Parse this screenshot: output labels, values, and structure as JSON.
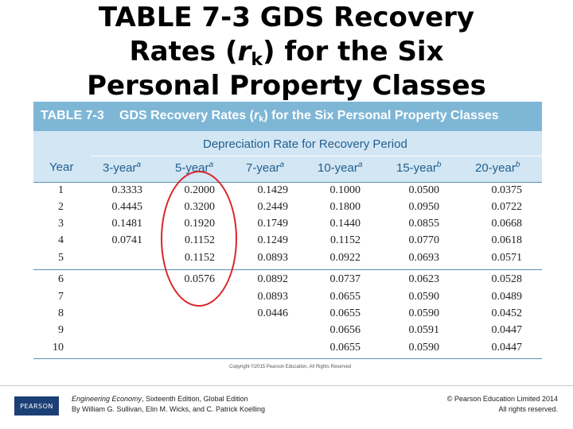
{
  "slide": {
    "title_line1": "TABLE 7-3 GDS   Recovery",
    "title_line2_pre": "Rates (",
    "title_line2_sym": "r",
    "title_line2_sub": "k",
    "title_line2_post": ") for the Six",
    "title_line3": "Personal Property Classes"
  },
  "table": {
    "number": "TABLE 7-3",
    "caption_pre": "GDS Recovery Rates (",
    "caption_sym": "r",
    "caption_sub": "k",
    "caption_post": ") for the Six Personal Property Classes",
    "group_header": "Depreciation Rate for Recovery Period",
    "columns": [
      {
        "label": "Year",
        "note": ""
      },
      {
        "label": "3-year",
        "note": "a"
      },
      {
        "label": "5-year",
        "note": "a"
      },
      {
        "label": "7-year",
        "note": "a"
      },
      {
        "label": "10-year",
        "note": "a"
      },
      {
        "label": "15-year",
        "note": "b"
      },
      {
        "label": "20-year",
        "note": "b"
      }
    ],
    "rows": [
      [
        "1",
        "0.3333",
        "0.2000",
        "0.1429",
        "0.1000",
        "0.0500",
        "0.0375"
      ],
      [
        "2",
        "0.4445",
        "0.3200",
        "0.2449",
        "0.1800",
        "0.0950",
        "0.0722"
      ],
      [
        "3",
        "0.1481",
        "0.1920",
        "0.1749",
        "0.1440",
        "0.0855",
        "0.0668"
      ],
      [
        "4",
        "0.0741",
        "0.1152",
        "0.1249",
        "0.1152",
        "0.0770",
        "0.0618"
      ],
      [
        "5",
        "",
        "0.1152",
        "0.0893",
        "0.0922",
        "0.0693",
        "0.0571"
      ],
      [
        "6",
        "",
        "0.0576",
        "0.0892",
        "0.0737",
        "0.0623",
        "0.0528"
      ],
      [
        "7",
        "",
        "",
        "0.0893",
        "0.0655",
        "0.0590",
        "0.0489"
      ],
      [
        "8",
        "",
        "",
        "0.0446",
        "0.0655",
        "0.0590",
        "0.0452"
      ],
      [
        "9",
        "",
        "",
        "",
        "0.0656",
        "0.0591",
        "0.0447"
      ],
      [
        "10",
        "",
        "",
        "",
        "0.0655",
        "0.0590",
        "0.0447"
      ]
    ],
    "copyright": "Copyright ©2015 Pearson Education, All Rights Reserved"
  },
  "footer": {
    "logo_text": "PEARSON",
    "book_title": "Engineering Economy",
    "book_edition": ", Sixteenth Edition, Global Edition",
    "authors": "By William G. Sullivan, Elin M. Wicks, and C. Patrick Koelling",
    "publisher": "© Pearson Education Limited 2014",
    "rights": "All rights reserved."
  },
  "colors": {
    "header_blue": "#7eb6d6",
    "subheader_blue": "#d3e6f3",
    "heading_text": "#1f5f8f",
    "highlight_oval": "#d9262a",
    "pearson_navy": "#1c3f75"
  }
}
